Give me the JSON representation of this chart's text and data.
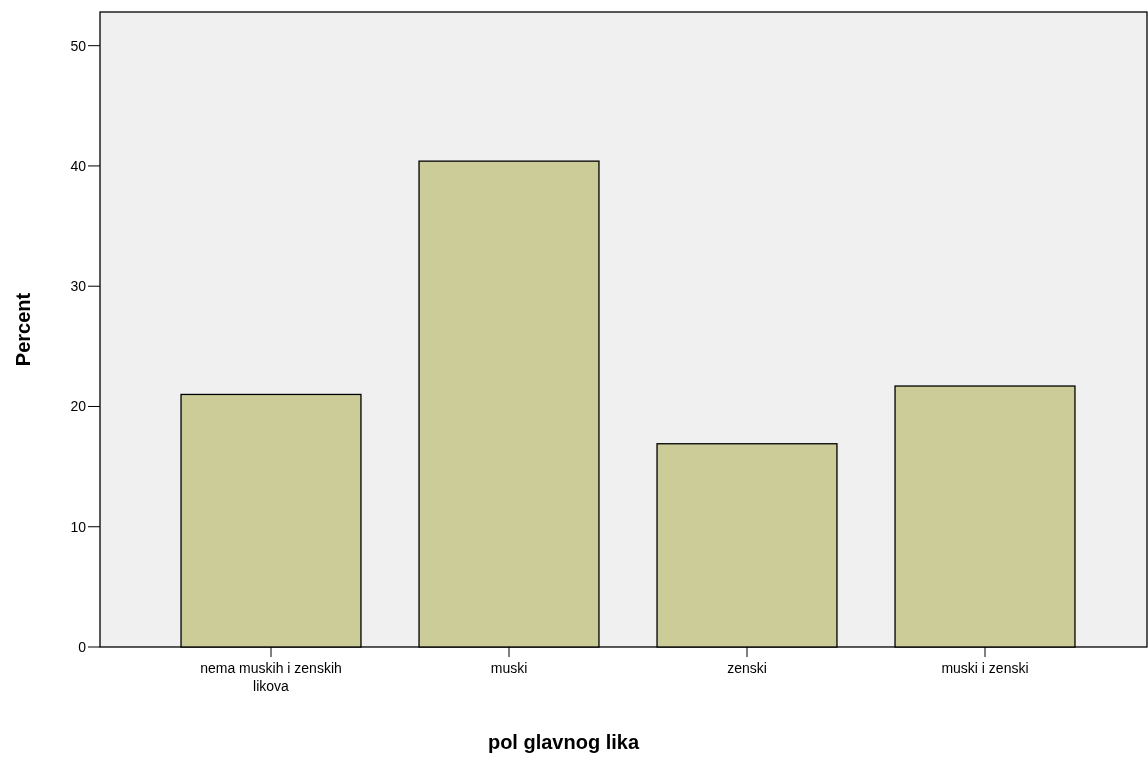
{
  "chart_data": {
    "type": "bar",
    "xlabel": "pol glavnog lika",
    "ylabel": "Percent",
    "categories": [
      "nema muskih i zenskih likova",
      "muski",
      "zenski",
      "muski i zenski"
    ],
    "values": [
      21.0,
      40.4,
      16.9,
      21.7
    ],
    "color": "#cccc99",
    "ylim": [
      0,
      52.8
    ],
    "yticks": [
      0,
      10,
      20,
      30,
      40,
      50
    ],
    "grid": false
  }
}
